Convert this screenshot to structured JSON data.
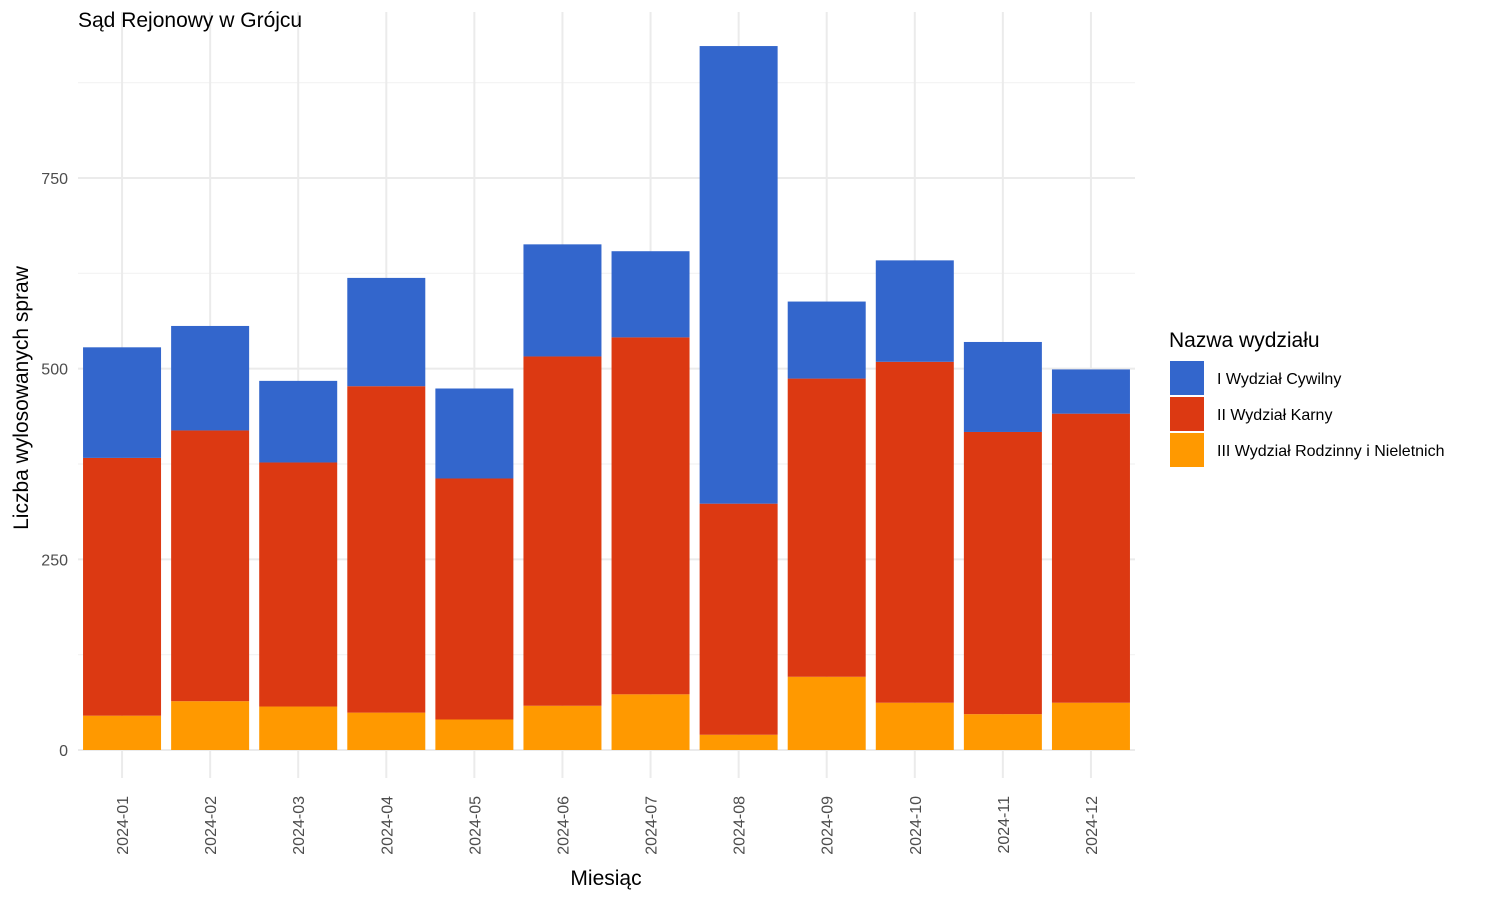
{
  "chart_data": {
    "type": "bar",
    "stacked": true,
    "title": "Sąd Rejonowy w Grójcu",
    "xlabel": "Miesiąc",
    "ylabel": "Liczba wylosowanych spraw",
    "ylim": [
      0,
      970
    ],
    "yticks": [
      0,
      250,
      500,
      750
    ],
    "grid": true,
    "legend_position": "right",
    "legend_title": "Nazwa wydziału",
    "categories": [
      "2024-01",
      "2024-02",
      "2024-03",
      "2024-04",
      "2024-05",
      "2024-06",
      "2024-07",
      "2024-08",
      "2024-09",
      "2024-10",
      "2024-11",
      "2024-12"
    ],
    "series": [
      {
        "name": "III Wydział Rodzinny i Nieletnich",
        "color": "#FF9900",
        "values": [
          45,
          64,
          57,
          49,
          40,
          58,
          73,
          20,
          96,
          62,
          47,
          62
        ]
      },
      {
        "name": "II Wydział Karny",
        "color": "#DC3912",
        "values": [
          338,
          355,
          320,
          428,
          316,
          458,
          468,
          303,
          391,
          447,
          370,
          379
        ]
      },
      {
        "name": "I Wydział Cywilny",
        "color": "#3366CC",
        "values": [
          145,
          137,
          107,
          142,
          118,
          147,
          113,
          600,
          101,
          133,
          118,
          58
        ]
      }
    ],
    "legend_order": [
      "I Wydział Cywilny",
      "II Wydział Karny",
      "III Wydział Rodzinny i Nieletnich"
    ]
  }
}
